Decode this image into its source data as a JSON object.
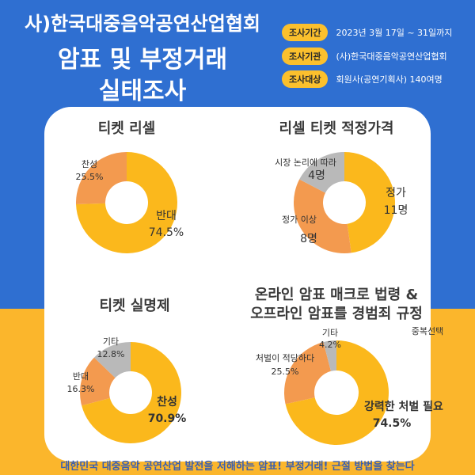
{
  "header": {
    "line1": "사)한국대중음악공연산업협회",
    "line2": "암표 및 부정거래",
    "line3": "실태조사"
  },
  "info": [
    {
      "label": "조사기간",
      "value": "2023년 3월 17일 ~ 31일까지"
    },
    {
      "label": "조사기관",
      "value": "(사)한국대중음악공연산업협회"
    },
    {
      "label": "조사대상",
      "value": "회원사(공연기획사) 140여명"
    }
  ],
  "note": "중복선택",
  "footer": "대한민국 대중음악 공연산업 발전을 저해하는 암표! 부정거래! 근절 방법을 찾는다",
  "colors": {
    "yellow": "#fbb81c",
    "orange": "#f39a4f",
    "gray": "#b9b9b9",
    "blue": "#2f6fd1"
  },
  "chart_data": [
    {
      "type": "pie",
      "title": "티켓 리셀",
      "categories": [
        "반대",
        "찬성"
      ],
      "values": [
        74.5,
        25.5
      ],
      "value_labels": [
        "74.5%",
        "25.5%"
      ],
      "colors": [
        "#fbb81c",
        "#f39a4f"
      ]
    },
    {
      "type": "pie",
      "title": "리셀 티켓 적정가격",
      "categories": [
        "정가",
        "정가 이상",
        "시장 논리에 따라"
      ],
      "values": [
        11,
        8,
        4
      ],
      "value_labels": [
        "11명",
        "8명",
        "4명"
      ],
      "colors": [
        "#fbb81c",
        "#f39a4f",
        "#b9b9b9"
      ]
    },
    {
      "type": "pie",
      "title": "티켓 실명제",
      "categories": [
        "찬성",
        "반대",
        "기타"
      ],
      "values": [
        70.9,
        16.3,
        12.8
      ],
      "value_labels": [
        "70.9%",
        "16.3%",
        "12.8%"
      ],
      "colors": [
        "#fbb81c",
        "#f39a4f",
        "#b9b9b9"
      ]
    },
    {
      "type": "pie",
      "title_lines": [
        "온라인 암표 매크로 법령 &",
        "오프라인 암표를 경범죄 규정"
      ],
      "categories": [
        "강력한 처벌 필요",
        "처벌이 적당하다",
        "기타"
      ],
      "values": [
        74.5,
        25.5,
        4.2
      ],
      "value_labels": [
        "74.5%",
        "25.5%",
        "4.2%"
      ],
      "colors": [
        "#fbb81c",
        "#f39a4f",
        "#b9b9b9"
      ]
    }
  ]
}
